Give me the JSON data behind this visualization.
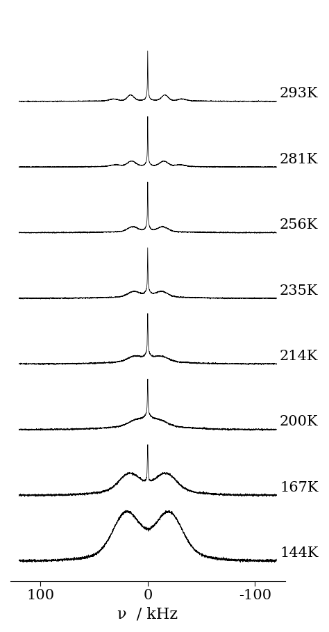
{
  "temperatures": [
    "293K",
    "281K",
    "256K",
    "235K",
    "214K",
    "200K",
    "167K",
    "144K"
  ],
  "x_min": -120,
  "x_max": 120,
  "xlabel": "ν  / kHz",
  "xticks": [
    100,
    0,
    -100
  ],
  "xtick_labels": [
    "100",
    "0",
    "-100"
  ],
  "background_color": "#ffffff",
  "line_color": "#000000",
  "label_fontsize": 15,
  "tick_fontsize": 15,
  "figsize": [
    4.74,
    9.09
  ],
  "dpi": 100
}
